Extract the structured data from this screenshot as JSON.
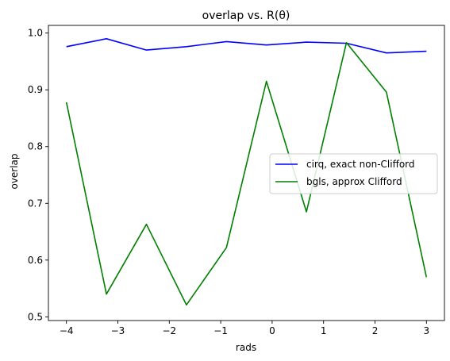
{
  "chart_data": {
    "type": "line",
    "title": "overlap vs. R(θ)",
    "xlabel": "rads",
    "ylabel": "overlap",
    "xlim": [
      -4.35,
      3.35
    ],
    "ylim": [
      0.4935,
      1.0135
    ],
    "xticks": [
      -4,
      -3,
      -2,
      -1,
      0,
      1,
      2,
      3
    ],
    "xtick_labels": [
      "−4",
      "−3",
      "−2",
      "−1",
      "0",
      "1",
      "2",
      "3"
    ],
    "yticks": [
      0.5,
      0.6,
      0.7,
      0.8,
      0.9,
      1.0
    ],
    "ytick_labels": [
      "0.5",
      "0.6",
      "0.7",
      "0.8",
      "0.9",
      "1.0"
    ],
    "grid": false,
    "legend_position": "center-right",
    "x": [
      -4.0,
      -3.222,
      -2.444,
      -1.667,
      -0.889,
      -0.111,
      0.667,
      1.444,
      2.222,
      3.0
    ],
    "series": [
      {
        "name": "cirq, exact non-Clifford",
        "color": "#0000ff",
        "values": [
          0.976,
          0.99,
          0.97,
          0.976,
          0.985,
          0.979,
          0.984,
          0.982,
          0.965,
          0.968
        ]
      },
      {
        "name": "bgls, approx Clifford",
        "color": "#008000",
        "values": [
          0.878,
          0.54,
          0.663,
          0.521,
          0.622,
          0.915,
          0.685,
          0.983,
          0.896,
          0.57
        ]
      }
    ]
  }
}
